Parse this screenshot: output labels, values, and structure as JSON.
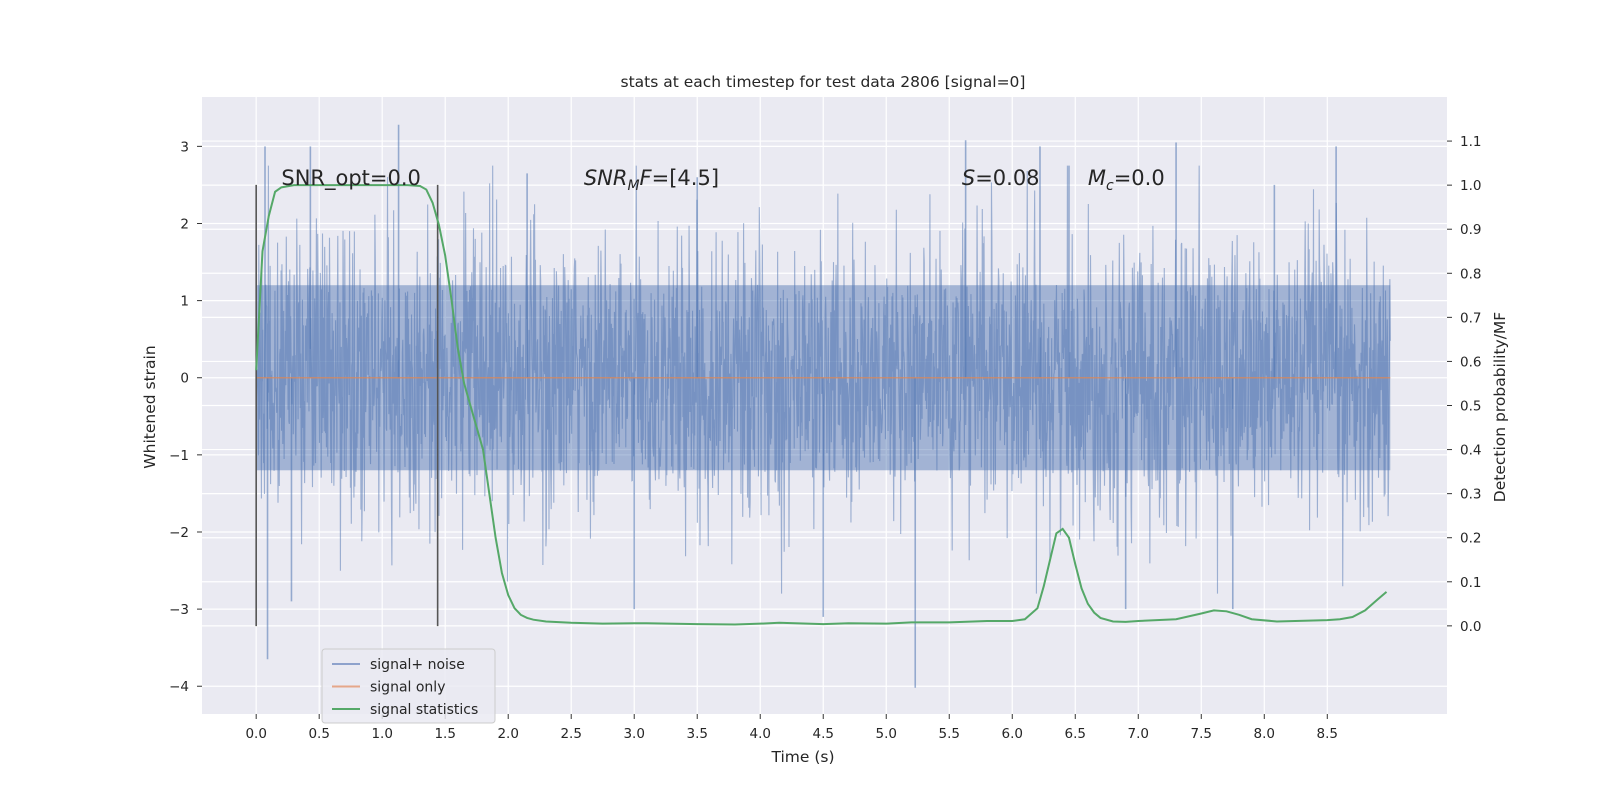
{
  "chart_data": {
    "type": "line",
    "title": "stats at each timestep for test data 2806 [signal=0]",
    "xlabel": "Time (s)",
    "ylabel": "Whitened strain",
    "ylabel_right": "Detection probability/MF",
    "xlim": [
      -0.43,
      9.45
    ],
    "ylim": [
      -4.36,
      3.64
    ],
    "ylim_right": [
      -0.2,
      1.2
    ],
    "x_ticks": [
      "0.0",
      "0.5",
      "1.0",
      "1.5",
      "2.0",
      "2.5",
      "3.0",
      "3.5",
      "4.0",
      "4.5",
      "5.0",
      "5.5",
      "6.0",
      "6.5",
      "7.0",
      "7.5",
      "8.0",
      "8.5"
    ],
    "x_tick_values": [
      0.0,
      0.5,
      1.0,
      1.5,
      2.0,
      2.5,
      3.0,
      3.5,
      4.0,
      4.5,
      5.0,
      5.5,
      6.0,
      6.5,
      7.0,
      7.5,
      8.0,
      8.5
    ],
    "y_ticks": [
      "3",
      "2",
      "1",
      "0",
      "−1",
      "−2",
      "−3",
      "−4"
    ],
    "y_tick_values": [
      3,
      2,
      1,
      0,
      -1,
      -2,
      -3,
      -4
    ],
    "y_right_ticks": [
      "1.1",
      "1.0",
      "0.9",
      "0.8",
      "0.7",
      "0.6",
      "0.5",
      "0.4",
      "0.3",
      "0.2",
      "0.1",
      "0.0"
    ],
    "y_right_tick_values": [
      1.1,
      1.0,
      0.9,
      0.8,
      0.7,
      0.6,
      0.5,
      0.4,
      0.3,
      0.2,
      0.1,
      0.0
    ],
    "grid": true,
    "legend_position": "bottom-left",
    "colors": {
      "noise": "#4c72b0",
      "signal": "#dd8452",
      "stats": "#55a868",
      "vline": "#555555",
      "background": "#eaeaf2"
    },
    "legend": [
      {
        "label": "signal+ noise",
        "color": "#8ea2cc"
      },
      {
        "label": "signal only",
        "color": "#e5a789"
      },
      {
        "label": "signal statistics",
        "color": "#55a868"
      }
    ],
    "annotations": [
      {
        "text": "SNR_opt=0.0",
        "x": 0.2,
        "y": 2.5
      },
      {
        "text": "SNR_MF=[4.5]",
        "x": 2.6,
        "y": 2.5
      },
      {
        "text": "S=0.08",
        "x": 5.6,
        "y": 2.5
      },
      {
        "text": "M_c=0.0",
        "x": 6.6,
        "y": 2.5
      }
    ],
    "vertical_lines": [
      {
        "x": 0.0,
        "y_from": -3.22,
        "y_to": 2.5
      },
      {
        "x": 1.44,
        "y_from": -3.22,
        "y_to": 2.5
      }
    ],
    "signal_noise": {
      "x_start": 0.0,
      "x_end": 9.0,
      "band_low": -1.2,
      "band_high": 1.2,
      "extremes": [
        {
          "x": 0.07,
          "y": 3.0
        },
        {
          "x": 0.09,
          "y": -3.65
        },
        {
          "x": 0.43,
          "y": 3.0
        },
        {
          "x": 1.13,
          "y": 3.28
        },
        {
          "x": 5.23,
          "y": -4.02
        },
        {
          "x": 5.63,
          "y": 3.08
        },
        {
          "x": 6.22,
          "y": 3.0
        },
        {
          "x": 7.3,
          "y": 3.05
        },
        {
          "x": 8.57,
          "y": 3.0
        },
        {
          "x": 0.28,
          "y": -2.9
        },
        {
          "x": 3.0,
          "y": -3.0
        },
        {
          "x": 4.5,
          "y": -3.1
        },
        {
          "x": 7.75,
          "y": -3.0
        },
        {
          "x": 6.9,
          "y": -3.0
        },
        {
          "x": 2.15,
          "y": 2.65
        },
        {
          "x": 3.5,
          "y": 2.6
        },
        {
          "x": 6.45,
          "y": 2.75
        },
        {
          "x": 8.08,
          "y": 2.5
        }
      ]
    },
    "signal_only": {
      "x": [
        0.0,
        9.0
      ],
      "y": [
        0.0,
        0.0
      ]
    },
    "signal_statistics": {
      "x": [
        0.0,
        0.05,
        0.1,
        0.15,
        0.2,
        0.3,
        0.5,
        0.8,
        1.0,
        1.2,
        1.3,
        1.35,
        1.4,
        1.45,
        1.5,
        1.55,
        1.6,
        1.65,
        1.7,
        1.8,
        1.85,
        1.9,
        1.95,
        2.0,
        2.05,
        2.1,
        2.15,
        2.2,
        2.3,
        2.5,
        2.75,
        3.0,
        3.1,
        3.5,
        3.8,
        4.0,
        4.15,
        4.5,
        4.7,
        5.0,
        5.2,
        5.5,
        5.8,
        6.0,
        6.1,
        6.2,
        6.25,
        6.3,
        6.35,
        6.4,
        6.45,
        6.5,
        6.55,
        6.6,
        6.65,
        6.7,
        6.8,
        6.9,
        7.0,
        7.3,
        7.5,
        7.6,
        7.7,
        7.8,
        7.9,
        8.1,
        8.5,
        8.6,
        8.7,
        8.8,
        8.9,
        8.97
      ],
      "y": [
        0.58,
        0.85,
        0.93,
        0.985,
        0.995,
        1.0,
        1.0,
        1.0,
        1.0,
        1.0,
        0.998,
        0.99,
        0.96,
        0.91,
        0.84,
        0.74,
        0.63,
        0.55,
        0.5,
        0.4,
        0.3,
        0.2,
        0.12,
        0.07,
        0.04,
        0.025,
        0.018,
        0.014,
        0.01,
        0.007,
        0.005,
        0.006,
        0.006,
        0.004,
        0.003,
        0.005,
        0.007,
        0.004,
        0.006,
        0.005,
        0.008,
        0.008,
        0.011,
        0.011,
        0.015,
        0.04,
        0.09,
        0.15,
        0.21,
        0.22,
        0.2,
        0.14,
        0.085,
        0.05,
        0.03,
        0.018,
        0.01,
        0.009,
        0.011,
        0.015,
        0.028,
        0.035,
        0.033,
        0.025,
        0.015,
        0.01,
        0.013,
        0.015,
        0.02,
        0.035,
        0.06,
        0.077
      ]
    }
  }
}
